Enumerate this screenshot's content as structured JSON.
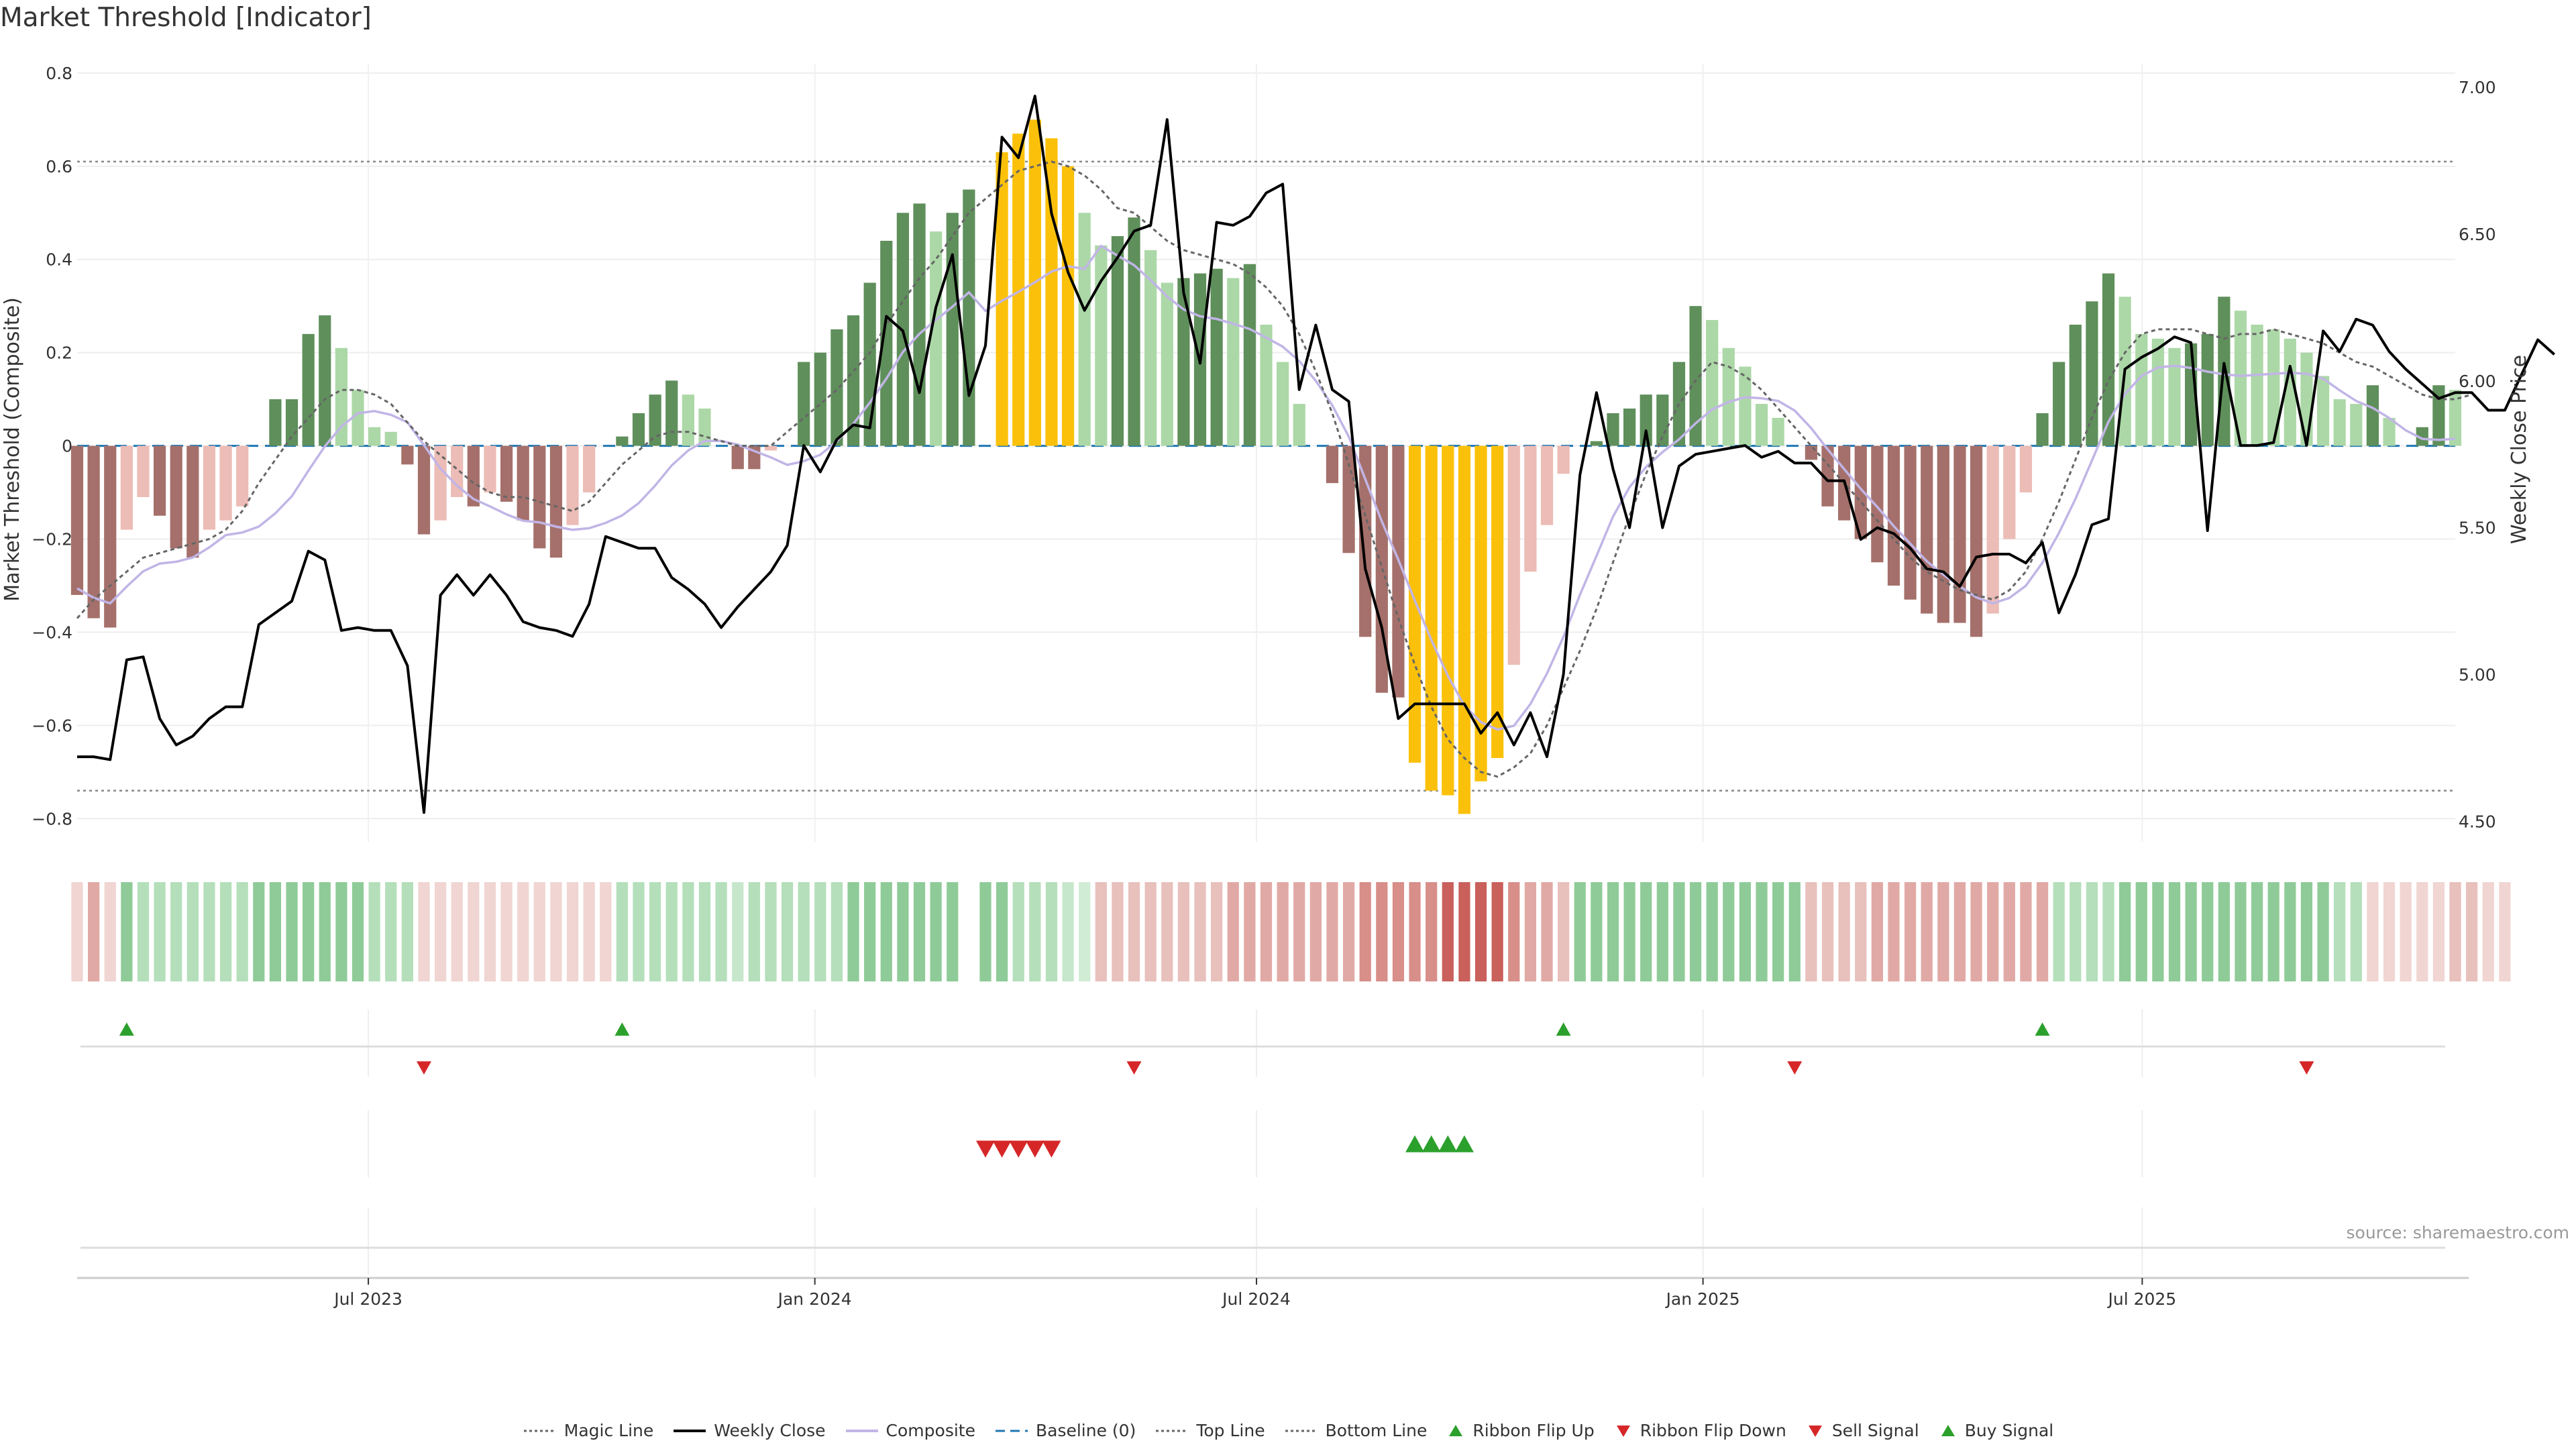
{
  "title": "Market Threshold [Indicator]",
  "source": "source: sharemaestro.com",
  "chart_data": {
    "type": "bar",
    "ylabel_left": "Market Threshold (Composite)",
    "ylabel_right": "Weekly Close Price",
    "ylim_left": [
      -0.85,
      0.82
    ],
    "ylim_right": [
      4.43,
      7.08
    ],
    "yticks_left": [
      "0.8",
      "0.6",
      "0.4",
      "0.2",
      "0",
      "−0.2",
      "−0.4",
      "−0.6",
      "−0.8"
    ],
    "yticks_left_values": [
      0.8,
      0.6,
      0.4,
      0.2,
      0,
      -0.2,
      -0.4,
      -0.6,
      -0.8
    ],
    "yticks_right": [
      "7.00",
      "6.50",
      "6.00",
      "5.50",
      "5.00",
      "4.50"
    ],
    "yticks_right_values": [
      7.0,
      6.5,
      6.0,
      5.5,
      5.0,
      4.5
    ],
    "x_start": "2023-03-03",
    "x_end": "2025-11-07",
    "x_ticks": [
      {
        "label": "Jul 2023",
        "date": "2023-07-01"
      },
      {
        "label": "Jan 2024",
        "date": "2024-01-01"
      },
      {
        "label": "Jul 2024",
        "date": "2024-07-01"
      },
      {
        "label": "Jan 2025",
        "date": "2025-01-01"
      },
      {
        "label": "Jul 2025",
        "date": "2025-07-01"
      }
    ],
    "top_line": 0.61,
    "bottom_line": -0.74,
    "baseline": 0,
    "grid": true,
    "legend_position": "bottom-center",
    "composite": [
      -0.32,
      -0.37,
      -0.39,
      -0.18,
      -0.11,
      -0.15,
      -0.22,
      -0.24,
      -0.18,
      -0.16,
      -0.13,
      0.0,
      0.1,
      0.1,
      0.24,
      0.28,
      0.21,
      0.12,
      0.04,
      0.03,
      -0.04,
      -0.19,
      -0.16,
      -0.11,
      -0.13,
      -0.1,
      -0.12,
      -0.16,
      -0.22,
      -0.24,
      -0.17,
      -0.1,
      0.0,
      0.02,
      0.07,
      0.11,
      0.14,
      0.11,
      0.08,
      0.0,
      -0.05,
      -0.05,
      -0.01,
      0.0,
      0.18,
      0.2,
      0.25,
      0.28,
      0.35,
      0.44,
      0.5,
      0.52,
      0.46,
      0.5,
      0.55,
      0.0,
      0.63,
      0.67,
      0.7,
      0.66,
      0.6,
      0.5,
      0.43,
      0.45,
      0.49,
      0.42,
      0.35,
      0.36,
      0.37,
      0.38,
      0.36,
      0.39,
      0.26,
      0.18,
      0.09,
      0.0,
      -0.08,
      -0.23,
      -0.41,
      -0.53,
      -0.54,
      -0.68,
      -0.74,
      -0.75,
      -0.79,
      -0.72,
      -0.67,
      -0.47,
      -0.27,
      -0.17,
      -0.06,
      0.0,
      0.01,
      0.07,
      0.08,
      0.11,
      0.11,
      0.18,
      0.3,
      0.27,
      0.21,
      0.17,
      0.09,
      0.06,
      0.0,
      -0.03,
      -0.13,
      -0.16,
      -0.2,
      -0.25,
      -0.3,
      -0.33,
      -0.36,
      -0.38,
      -0.38,
      -0.41,
      -0.36,
      -0.2,
      -0.1,
      0.07,
      0.18,
      0.26,
      0.31,
      0.37,
      0.32,
      0.24,
      0.23,
      0.21,
      0.22,
      0.24,
      0.32,
      0.29,
      0.26,
      0.25,
      0.23,
      0.2,
      0.15,
      0.1,
      0.09,
      0.13,
      0.06,
      0.0,
      0.04,
      0.13,
      0.12
    ],
    "weekly_close": [
      4.72,
      4.72,
      4.71,
      5.05,
      5.06,
      4.85,
      4.76,
      4.79,
      4.85,
      4.89,
      4.89,
      5.17,
      5.21,
      5.25,
      5.42,
      5.39,
      5.15,
      5.16,
      5.15,
      5.15,
      5.03,
      4.53,
      5.27,
      5.34,
      5.27,
      5.34,
      5.27,
      5.18,
      5.16,
      5.15,
      5.13,
      5.24,
      5.47,
      5.45,
      5.43,
      5.43,
      5.33,
      5.29,
      5.24,
      5.16,
      5.23,
      5.29,
      5.35,
      5.44,
      5.78,
      5.69,
      5.8,
      5.85,
      5.84,
      6.22,
      6.17,
      5.96,
      6.25,
      6.43,
      5.95,
      6.12,
      6.83,
      6.76,
      6.97,
      6.57,
      6.37,
      6.24,
      6.34,
      6.42,
      6.51,
      6.53,
      6.89,
      6.3,
      6.06,
      6.54,
      6.53,
      6.56,
      6.64,
      6.67,
      5.97,
      6.19,
      5.97,
      5.93,
      5.36,
      5.16,
      4.85,
      4.9,
      4.9,
      4.9,
      4.9,
      4.8,
      4.87,
      4.76,
      4.87,
      4.72,
      5.0,
      5.68,
      5.96,
      5.7,
      5.5,
      5.83,
      5.5,
      5.71,
      5.75,
      5.76,
      5.77,
      5.78,
      5.74,
      5.76,
      5.72,
      5.72,
      5.66,
      5.66,
      5.46,
      5.5,
      5.48,
      5.43,
      5.36,
      5.35,
      5.3,
      5.4,
      5.41,
      5.41,
      5.38,
      5.45,
      5.21,
      5.34,
      5.51,
      5.53,
      6.04,
      6.08,
      6.11,
      6.15,
      6.13,
      5.49,
      6.06,
      5.78,
      5.78,
      5.79,
      6.05,
      5.78,
      6.17,
      6.1,
      6.21,
      6.19,
      6.1,
      6.04,
      5.99,
      5.94,
      5.96,
      5.96,
      5.9,
      5.9,
      6.02,
      6.14,
      6.09
    ],
    "magic_line": [
      -0.37,
      -0.33,
      -0.3,
      -0.27,
      -0.24,
      -0.23,
      -0.22,
      -0.21,
      -0.2,
      -0.18,
      -0.14,
      -0.08,
      -0.03,
      0.02,
      0.06,
      0.1,
      0.12,
      0.12,
      0.11,
      0.09,
      0.05,
      0.01,
      -0.02,
      -0.05,
      -0.08,
      -0.1,
      -0.11,
      -0.11,
      -0.12,
      -0.13,
      -0.14,
      -0.12,
      -0.08,
      -0.04,
      -0.01,
      0.02,
      0.03,
      0.03,
      0.02,
      0.01,
      0.0,
      0.0,
      0.0,
      0.03,
      0.06,
      0.09,
      0.12,
      0.16,
      0.2,
      0.26,
      0.31,
      0.36,
      0.4,
      0.45,
      0.5,
      0.53,
      0.56,
      0.59,
      0.6,
      0.61,
      0.6,
      0.58,
      0.55,
      0.51,
      0.5,
      0.47,
      0.44,
      0.42,
      0.41,
      0.4,
      0.39,
      0.37,
      0.34,
      0.3,
      0.24,
      0.16,
      0.07,
      -0.04,
      -0.15,
      -0.26,
      -0.37,
      -0.47,
      -0.56,
      -0.63,
      -0.67,
      -0.7,
      -0.71,
      -0.69,
      -0.66,
      -0.6,
      -0.52,
      -0.44,
      -0.35,
      -0.25,
      -0.15,
      -0.06,
      0.02,
      0.09,
      0.14,
      0.18,
      0.17,
      0.15,
      0.12,
      0.08,
      0.04,
      0.0,
      -0.04,
      -0.08,
      -0.12,
      -0.16,
      -0.2,
      -0.24,
      -0.27,
      -0.29,
      -0.31,
      -0.32,
      -0.33,
      -0.31,
      -0.27,
      -0.2,
      -0.12,
      -0.03,
      0.06,
      0.14,
      0.2,
      0.24,
      0.25,
      0.25,
      0.25,
      0.24,
      0.23,
      0.24,
      0.24,
      0.25,
      0.24,
      0.23,
      0.22,
      0.2,
      0.18,
      0.17,
      0.15,
      0.13,
      0.11,
      0.1,
      0.1,
      0.11
    ]
  },
  "ribbon_colors": [
    "#f0d5d2",
    "#e1a9a5",
    "#f0d5d2",
    "#8fcb98",
    "#b4dfba",
    "#b4dfba",
    "#b4dfba",
    "#b4dfba",
    "#b4dfba",
    "#b4dfba",
    "#b4dfba",
    "#8fcb98",
    "#8fcb98",
    "#8fcb98",
    "#8fcb98",
    "#8fcb98",
    "#8fcb98",
    "#8fcb98",
    "#b4dfba",
    "#b4dfba",
    "#b4dfba",
    "#f0d5d2",
    "#f0d5d2",
    "#f0d5d2",
    "#f0d5d2",
    "#f0d5d2",
    "#f0d5d2",
    "#f0d5d2",
    "#f0d5d2",
    "#f0d5d2",
    "#f0d5d2",
    "#f0d5d2",
    "#f0d5d2",
    "#b4dfba",
    "#b4dfba",
    "#b4dfba",
    "#b4dfba",
    "#b4dfba",
    "#b4dfba",
    "#b4dfba",
    "#c6e7cb",
    "#b4dfba",
    "#b4dfba",
    "#b4dfba",
    "#b4dfba",
    "#b4dfba",
    "#b4dfba",
    "#8fcb98",
    "#8fcb98",
    "#8fcb98",
    "#8fcb98",
    "#8fcb98",
    "#8fcb98",
    "#8fcb98",
    "#ffffff",
    "#8fcb98",
    "#8fcb98",
    "#b4dfba",
    "#b4dfba",
    "#b4dfba",
    "#c6e7cb",
    "#d0ecd4",
    "#e8c0bc",
    "#e8c0bc",
    "#e8c0bc",
    "#e8c0bc",
    "#e8c0bc",
    "#e8c0bc",
    "#e8c0bc",
    "#e8c0bc",
    "#e1a9a5",
    "#e1a9a5",
    "#e1a9a5",
    "#e1a9a5",
    "#e1a9a5",
    "#e1a9a5",
    "#e1a9a5",
    "#e1a9a5",
    "#d88e89",
    "#d88e89",
    "#d88e89",
    "#d88e89",
    "#d88e89",
    "#c9605c",
    "#c9605c",
    "#c9605c",
    "#c9605c",
    "#d88e89",
    "#e1a9a5",
    "#e1a9a5",
    "#e8c0bc",
    "#8fcb98",
    "#8fcb98",
    "#8fcb98",
    "#8fcb98",
    "#8fcb98",
    "#8fcb98",
    "#8fcb98",
    "#8fcb98",
    "#8fcb98",
    "#8fcb98",
    "#8fcb98",
    "#8fcb98",
    "#8fcb98",
    "#8fcb98",
    "#e8c0bc",
    "#e8c0bc",
    "#e8c0bc",
    "#e8c0bc",
    "#e1a9a5",
    "#e1a9a5",
    "#e1a9a5",
    "#e1a9a5",
    "#e1a9a5",
    "#e1a9a5",
    "#e1a9a5",
    "#e1a9a5",
    "#e1a9a5",
    "#e1a9a5",
    "#e1a9a5",
    "#b4dfba",
    "#b4dfba",
    "#b4dfba",
    "#b4dfba",
    "#8fcb98",
    "#8fcb98",
    "#8fcb98",
    "#8fcb98",
    "#8fcb98",
    "#8fcb98",
    "#8fcb98",
    "#8fcb98",
    "#8fcb98",
    "#8fcb98",
    "#8fcb98",
    "#8fcb98",
    "#8fcb98",
    "#b4dfba",
    "#b4dfba",
    "#f0d5d2",
    "#f0d5d2",
    "#f0d5d2",
    "#f0d5d2",
    "#f0d5d2",
    "#e8c0bc",
    "#e8c0bc",
    "#f0d5d2",
    "#f0d5d2"
  ],
  "signals": {
    "ribbon_flip_up": [
      3,
      33,
      90,
      119
    ],
    "ribbon_flip_down": [
      21,
      64,
      104,
      135
    ],
    "sell_signal": [
      55,
      56,
      57,
      58,
      59
    ],
    "buy_signal": [
      81,
      82,
      83,
      84
    ]
  },
  "colors": {
    "bull_dark": "#5f8f5b",
    "bull_light": "#acd8a7",
    "bear_dark": "#a5706b",
    "bear_light": "#ecbcb6",
    "extreme": "#fbc10a",
    "weekly_close": "#000000",
    "composite_line": "#c1b5e6",
    "magic_line": "#666666",
    "baseline": "#1f77b4",
    "threshold_line": "#888888",
    "flip_up": "#2ca02c",
    "flip_down": "#d62728",
    "sell": "#d62728",
    "buy": "#2ca02c"
  },
  "legend": [
    {
      "label": "Magic Line",
      "icon": "dotted-line"
    },
    {
      "label": "Weekly Close",
      "icon": "solid-line"
    },
    {
      "label": "Composite",
      "icon": "composite-line"
    },
    {
      "label": "Baseline (0)",
      "icon": "dashed-line"
    },
    {
      "label": "Top Line",
      "icon": "dotted-line"
    },
    {
      "label": "Bottom Line",
      "icon": "dotted-line"
    },
    {
      "label": "Ribbon Flip Up",
      "icon": "triangle-up"
    },
    {
      "label": "Ribbon Flip Down",
      "icon": "triangle-down"
    },
    {
      "label": "Sell Signal",
      "icon": "triangle-down"
    },
    {
      "label": "Buy Signal",
      "icon": "triangle-up"
    }
  ]
}
